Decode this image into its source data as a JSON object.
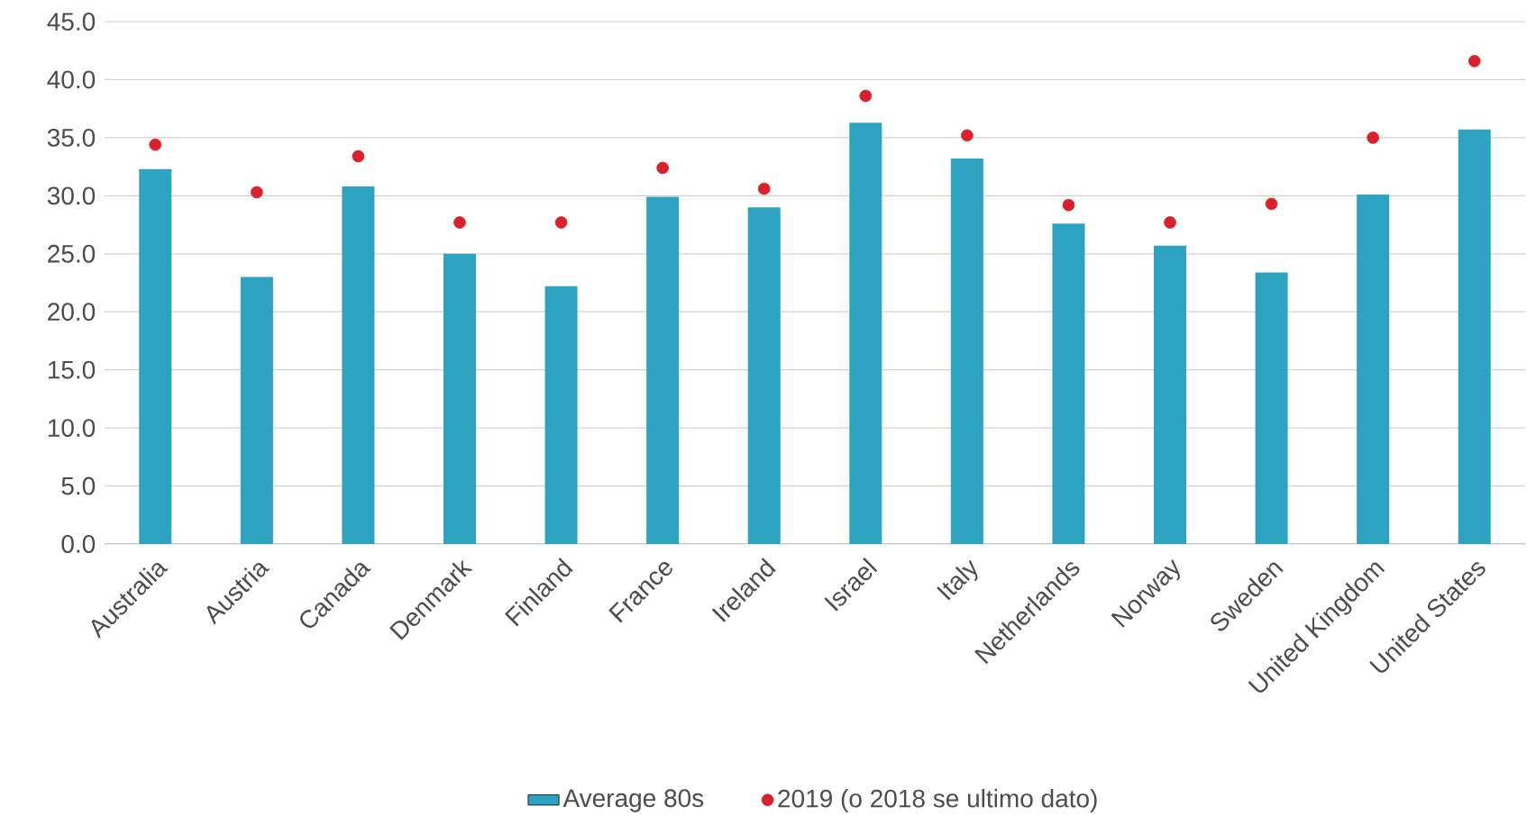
{
  "chart_data": {
    "type": "bar",
    "categories": [
      "Australia",
      "Austria",
      "Canada",
      "Denmark",
      "Finland",
      "France",
      "Ireland",
      "Israel",
      "Italy",
      "Netherlands",
      "Norway",
      "Sweden",
      "United Kingdom",
      "United States"
    ],
    "series": [
      {
        "name": "Average 80s",
        "color": "#2ea3c1",
        "values": [
          32.3,
          23.0,
          30.8,
          25.0,
          22.2,
          29.9,
          29.0,
          36.3,
          33.2,
          27.6,
          25.7,
          23.4,
          30.1,
          35.7
        ]
      },
      {
        "name": "2019 (o 2018 se ultimo dato)",
        "type": "scatter",
        "color": "#d9202b",
        "values": [
          34.4,
          30.3,
          33.4,
          27.7,
          27.7,
          32.4,
          30.6,
          38.6,
          35.2,
          29.2,
          27.7,
          29.3,
          35.0,
          41.6
        ]
      }
    ],
    "ylim": [
      0,
      45
    ],
    "yticks": [
      {
        "value": 0,
        "label": "0.0"
      },
      {
        "value": 5,
        "label": "5.0"
      },
      {
        "value": 10,
        "label": "10.0"
      },
      {
        "value": 15,
        "label": "15.0"
      },
      {
        "value": 20,
        "label": "20.0"
      },
      {
        "value": 25,
        "label": "25.0"
      },
      {
        "value": 30,
        "label": "30.0"
      },
      {
        "value": 35,
        "label": "35.0"
      },
      {
        "value": 40,
        "label": "40.0"
      },
      {
        "value": 45,
        "label": "45.0"
      }
    ],
    "grid": "y",
    "legend": "bottom",
    "marker": "circle"
  }
}
